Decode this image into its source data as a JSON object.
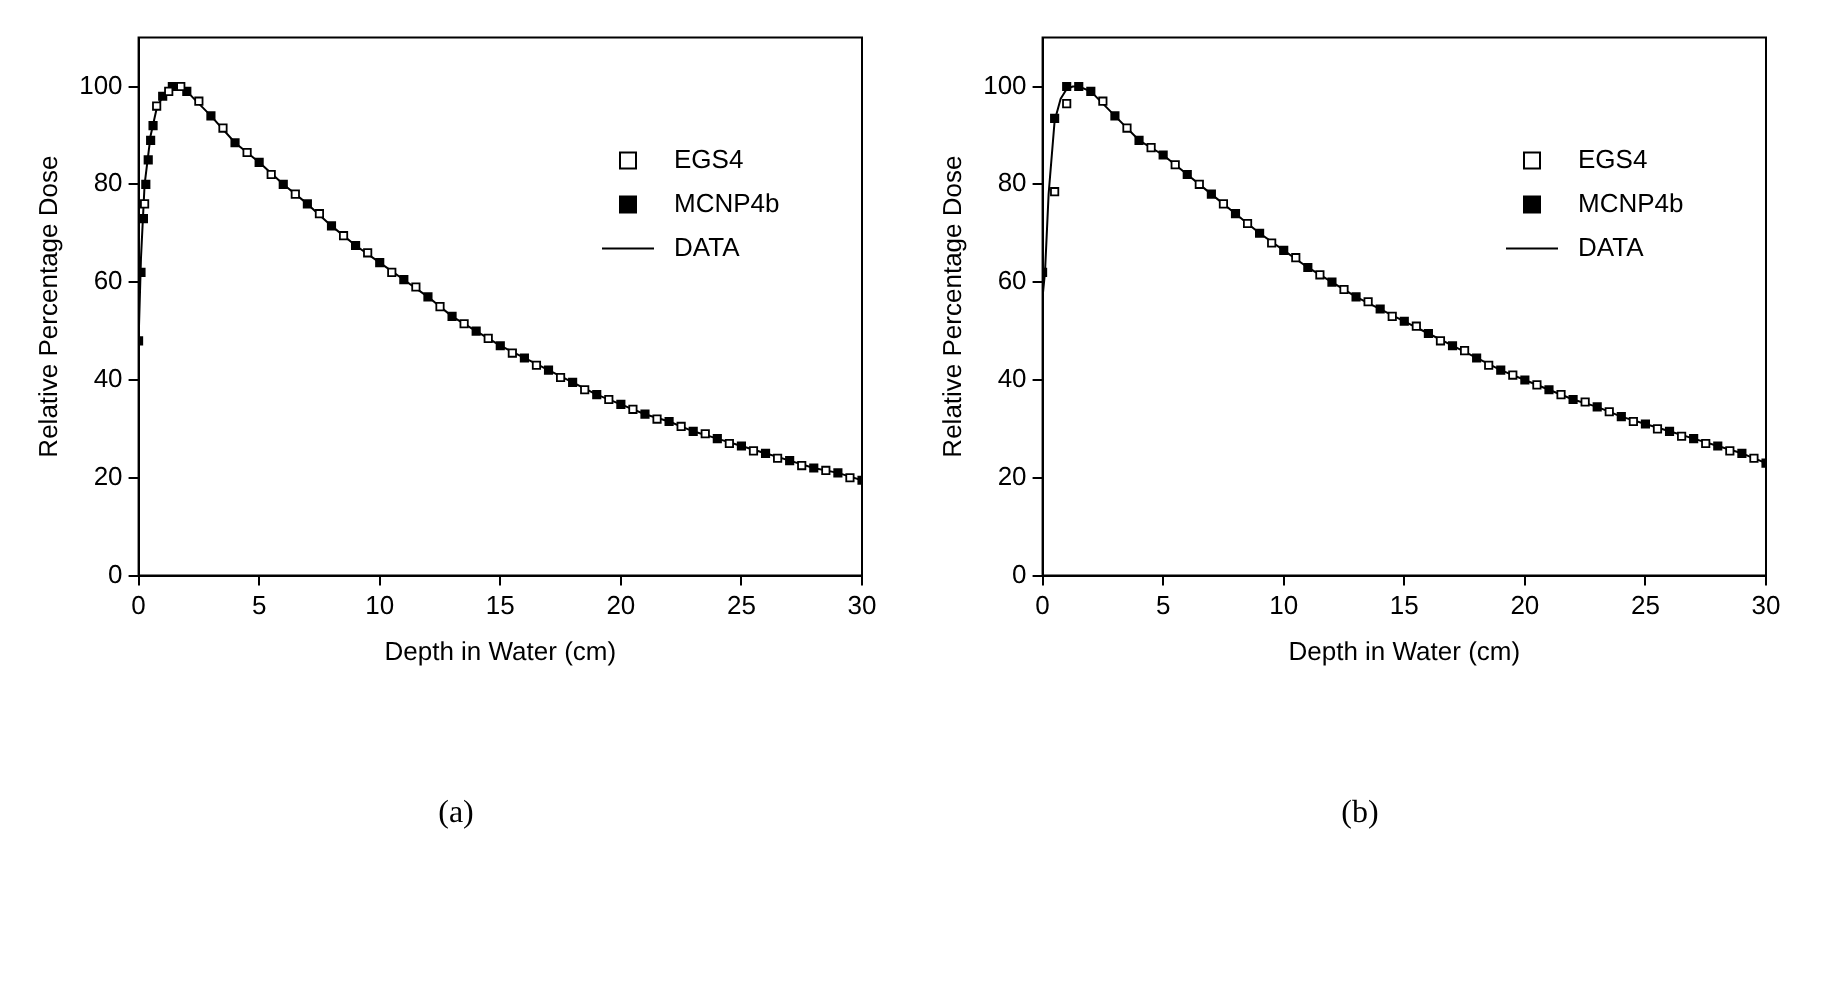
{
  "chart_data": [
    {
      "type": "scatter",
      "xlabel": "Depth in Water (cm)",
      "ylabel": "Relative Percentage Dose",
      "xlim": [
        0,
        30
      ],
      "ylim": [
        0,
        110
      ],
      "xticks": [
        0,
        5,
        10,
        15,
        20,
        25,
        30
      ],
      "yticks": [
        0,
        20,
        40,
        60,
        80,
        100
      ],
      "grid": false,
      "legend": "right",
      "annotations": [
        "(a)"
      ],
      "series": [
        {
          "name": "EGS4",
          "marker": "square",
          "color": "#000000",
          "x": [
            0.25,
            0.75,
            1.25,
            1.75,
            2.5,
            3.5,
            4.5,
            5.5,
            6.5,
            7.5,
            8.5,
            9.5,
            10.5,
            11.5,
            12.5,
            13.5,
            14.5,
            15.5,
            16.5,
            17.5,
            18.5,
            19.5,
            20.5,
            21.5,
            22.5,
            23.5,
            24.5,
            25.5,
            26.5,
            27.5,
            28.5,
            29.5
          ],
          "values": [
            76,
            96,
            99,
            100,
            97,
            91.5,
            86.5,
            82,
            78,
            74,
            69.5,
            66,
            62,
            59,
            55,
            51.5,
            48.5,
            45.5,
            43,
            40.5,
            38,
            36,
            34,
            32,
            30.5,
            29,
            27,
            25.5,
            24,
            22.5,
            21.5,
            20
          ]
        },
        {
          "name": "MCNP4b",
          "marker": "square",
          "color": "#000000",
          "x": [
            0,
            0.1,
            0.2,
            0.3,
            0.4,
            0.5,
            0.6,
            1,
            1.4,
            2,
            3,
            4,
            5,
            6,
            7,
            8,
            9,
            10,
            11,
            12,
            13,
            14,
            15,
            16,
            17,
            18,
            19,
            20,
            21,
            22,
            23,
            24,
            25,
            26,
            27,
            28,
            29,
            30
          ],
          "values": [
            48,
            62,
            73,
            80,
            85,
            89,
            92,
            98,
            100,
            99,
            94,
            88.5,
            84.5,
            80,
            76,
            71.5,
            67.5,
            64,
            60.5,
            57,
            53,
            50,
            47,
            44.5,
            42,
            39.5,
            37,
            35,
            33,
            31.5,
            29.5,
            28,
            26.5,
            25,
            23.5,
            22,
            21,
            19.5
          ]
        },
        {
          "name": "DATA",
          "type": "line",
          "marker": "none",
          "color": "#000000",
          "x": [
            0,
            0.1,
            0.25,
            0.5,
            0.75,
            1,
            1.25,
            1.5,
            2,
            3,
            4,
            5,
            6,
            7,
            8,
            9,
            10,
            11,
            12,
            13,
            14,
            15,
            16,
            17,
            18,
            19,
            20,
            21,
            22,
            23,
            24,
            25,
            26,
            27,
            28,
            29,
            30
          ],
          "values": [
            48,
            65,
            80,
            90,
            95.5,
            98,
            99.5,
            100,
            99,
            94,
            88.5,
            84.5,
            80,
            76,
            71.5,
            67.5,
            64,
            60.5,
            57,
            53,
            50,
            47,
            44.5,
            42,
            39.5,
            37,
            35,
            33,
            31.5,
            29.5,
            28,
            26.5,
            25,
            23.5,
            22,
            21,
            19.5
          ]
        }
      ]
    },
    {
      "type": "scatter",
      "xlabel": "Depth in Water (cm)",
      "ylabel": "Relative Percentage Dose",
      "xlim": [
        0,
        30
      ],
      "ylim": [
        0,
        110
      ],
      "xticks": [
        0,
        5,
        10,
        15,
        20,
        25,
        30
      ],
      "yticks": [
        0,
        20,
        40,
        60,
        80,
        100
      ],
      "grid": false,
      "legend": "right",
      "annotations": [
        "(b)"
      ],
      "series": [
        {
          "name": "EGS4",
          "marker": "square",
          "color": "#000000",
          "x": [
            0.5,
            1,
            2.5,
            3.5,
            4.5,
            5.5,
            6.5,
            7.5,
            8.5,
            9.5,
            10.5,
            11.5,
            12.5,
            13.5,
            14.5,
            15.5,
            16.5,
            17.5,
            18.5,
            19.5,
            20.5,
            21.5,
            22.5,
            23.5,
            24.5,
            25.5,
            26.5,
            27.5,
            28.5,
            29.5
          ],
          "values": [
            78.5,
            96.5,
            97,
            91.5,
            87.5,
            84,
            80,
            76,
            72,
            68,
            65,
            61.5,
            58.5,
            56,
            53,
            51,
            48,
            46,
            43,
            41,
            39,
            37,
            35.5,
            33.5,
            31.5,
            30,
            28.5,
            27,
            25.5,
            24
          ]
        },
        {
          "name": "MCNP4b",
          "marker": "square",
          "color": "#000000",
          "x": [
            0,
            0.5,
            1,
            1.5,
            2,
            3,
            4,
            5,
            6,
            7,
            8,
            9,
            10,
            11,
            12,
            13,
            14,
            15,
            16,
            17,
            18,
            19,
            20,
            21,
            22,
            23,
            24,
            25,
            26,
            27,
            28,
            29,
            30
          ],
          "values": [
            62,
            93.5,
            100,
            100,
            99,
            94,
            89,
            86,
            82,
            78,
            74,
            70,
            66.5,
            63,
            60,
            57,
            54.5,
            52,
            49.5,
            47,
            44.5,
            42,
            40,
            38,
            36,
            34.5,
            32.5,
            31,
            29.5,
            28,
            26.5,
            25,
            23
          ]
        },
        {
          "name": "DATA",
          "type": "line",
          "marker": "none",
          "color": "#000000",
          "x": [
            0,
            0.1,
            0.25,
            0.5,
            0.75,
            1,
            1.25,
            1.5,
            2,
            3,
            4,
            5,
            6,
            7,
            8,
            9,
            10,
            11,
            12,
            13,
            14,
            15,
            16,
            17,
            18,
            19,
            20,
            21,
            22,
            23,
            24,
            25,
            26,
            27,
            28,
            29,
            30
          ],
          "values": [
            57,
            62,
            78,
            93,
            97.5,
            99.5,
            100,
            100,
            99,
            94,
            89,
            86,
            82,
            78,
            74,
            70,
            66.5,
            63,
            60,
            57,
            54.5,
            52,
            49.5,
            47,
            44.5,
            42,
            40,
            38,
            36,
            34.5,
            32.5,
            31,
            29.5,
            28,
            26.5,
            25,
            23
          ]
        }
      ]
    }
  ]
}
